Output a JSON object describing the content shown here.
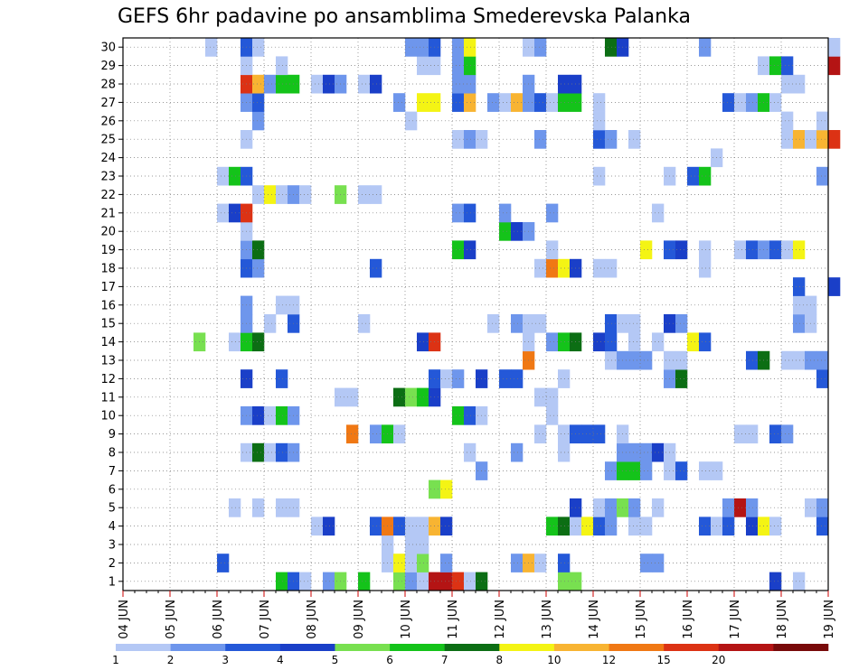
{
  "chart_data": {
    "type": "heatmap",
    "title": "GEFS 6hr padavine po ansamblima Smederevska Palanka",
    "xlabel": "",
    "ylabel": "",
    "x_ticks": [
      "04 JUN",
      "05 JUN",
      "06 JUN",
      "07 JUN",
      "08 JUN",
      "09 JUN",
      "10 JUN",
      "11 JUN",
      "12 JUN",
      "13 JUN",
      "14 JUN",
      "15 JUN",
      "16 JUN",
      "17 JUN",
      "18 JUN",
      "19 JUN"
    ],
    "y_ticks": [
      "1",
      "2",
      "3",
      "4",
      "5",
      "6",
      "7",
      "8",
      "9",
      "10",
      "11",
      "12",
      "13",
      "14",
      "15",
      "16",
      "17",
      "18",
      "19",
      "20",
      "21",
      "22",
      "23",
      "24",
      "25",
      "26",
      "27",
      "28",
      "29",
      "30"
    ],
    "x_steps_per_day": 4,
    "grid": true,
    "legend_placement": "bottom",
    "legend": {
      "labels": [
        "1",
        "2",
        "3",
        "4",
        "5",
        "6",
        "7",
        "8",
        "10",
        "12",
        "15",
        "20"
      ],
      "colors": [
        "#b4c8f5",
        "#6e96ec",
        "#2458d8",
        "#1a3fc8",
        "#78e050",
        "#14c31a",
        "#0c6e14",
        "#f4f414",
        "#f8b432",
        "#f07814",
        "#dc3214",
        "#b41414",
        "#780a0a"
      ]
    },
    "cells": [
      [
        1,
        14,
        6
      ],
      [
        1,
        15,
        3
      ],
      [
        1,
        16,
        1
      ],
      [
        1,
        18,
        2
      ],
      [
        1,
        19,
        5
      ],
      [
        1,
        21,
        6
      ],
      [
        1,
        24,
        5
      ],
      [
        1,
        25,
        2
      ],
      [
        1,
        26,
        1
      ],
      [
        1,
        27,
        12
      ],
      [
        1,
        28,
        12
      ],
      [
        1,
        29,
        11
      ],
      [
        1,
        30,
        1
      ],
      [
        1,
        31,
        7
      ],
      [
        1,
        38,
        5
      ],
      [
        1,
        39,
        5
      ],
      [
        1,
        56,
        4
      ],
      [
        1,
        58,
        1
      ],
      [
        2,
        9,
        3
      ],
      [
        2,
        23,
        1
      ],
      [
        2,
        24,
        8
      ],
      [
        2,
        25,
        1
      ],
      [
        2,
        26,
        5
      ],
      [
        2,
        28,
        2
      ],
      [
        2,
        34,
        2
      ],
      [
        2,
        35,
        9
      ],
      [
        2,
        36,
        1
      ],
      [
        2,
        38,
        3
      ],
      [
        2,
        45,
        2
      ],
      [
        2,
        46,
        2
      ],
      [
        3,
        23,
        1
      ],
      [
        3,
        25,
        1
      ],
      [
        3,
        26,
        1
      ],
      [
        4,
        17,
        1
      ],
      [
        4,
        18,
        4
      ],
      [
        4,
        22,
        3
      ],
      [
        4,
        23,
        10
      ],
      [
        4,
        24,
        3
      ],
      [
        4,
        25,
        1
      ],
      [
        4,
        26,
        1
      ],
      [
        4,
        27,
        9
      ],
      [
        4,
        28,
        4
      ],
      [
        4,
        37,
        6
      ],
      [
        4,
        38,
        7
      ],
      [
        4,
        39,
        1
      ],
      [
        4,
        40,
        8
      ],
      [
        4,
        41,
        3
      ],
      [
        4,
        42,
        2
      ],
      [
        4,
        44,
        1
      ],
      [
        4,
        45,
        1
      ],
      [
        4,
        50,
        3
      ],
      [
        4,
        51,
        1
      ],
      [
        4,
        52,
        3
      ],
      [
        4,
        54,
        4
      ],
      [
        4,
        55,
        8
      ],
      [
        4,
        56,
        1
      ],
      [
        4,
        60,
        3
      ],
      [
        5,
        10,
        1
      ],
      [
        5,
        12,
        1
      ],
      [
        5,
        14,
        1
      ],
      [
        5,
        15,
        1
      ],
      [
        5,
        39,
        4
      ],
      [
        5,
        41,
        1
      ],
      [
        5,
        42,
        2
      ],
      [
        5,
        43,
        5
      ],
      [
        5,
        44,
        2
      ],
      [
        5,
        46,
        1
      ],
      [
        5,
        52,
        2
      ],
      [
        5,
        53,
        12
      ],
      [
        5,
        54,
        2
      ],
      [
        5,
        59,
        1
      ],
      [
        5,
        60,
        2
      ],
      [
        6,
        27,
        5
      ],
      [
        6,
        28,
        8
      ],
      [
        7,
        31,
        2
      ],
      [
        7,
        42,
        2
      ],
      [
        7,
        43,
        6
      ],
      [
        7,
        44,
        6
      ],
      [
        7,
        45,
        2
      ],
      [
        7,
        47,
        1
      ],
      [
        7,
        48,
        3
      ],
      [
        7,
        50,
        1
      ],
      [
        7,
        51,
        1
      ],
      [
        8,
        11,
        1
      ],
      [
        8,
        12,
        7
      ],
      [
        8,
        13,
        1
      ],
      [
        8,
        14,
        3
      ],
      [
        8,
        15,
        2
      ],
      [
        8,
        30,
        1
      ],
      [
        8,
        34,
        2
      ],
      [
        8,
        38,
        1
      ],
      [
        8,
        43,
        2
      ],
      [
        8,
        44,
        2
      ],
      [
        8,
        45,
        2
      ],
      [
        8,
        46,
        4
      ],
      [
        8,
        47,
        1
      ],
      [
        9,
        20,
        10
      ],
      [
        9,
        22,
        2
      ],
      [
        9,
        23,
        6
      ],
      [
        9,
        24,
        1
      ],
      [
        9,
        36,
        1
      ],
      [
        9,
        38,
        1
      ],
      [
        9,
        39,
        3
      ],
      [
        9,
        40,
        3
      ],
      [
        9,
        41,
        3
      ],
      [
        9,
        43,
        1
      ],
      [
        9,
        53,
        1
      ],
      [
        9,
        54,
        1
      ],
      [
        9,
        56,
        3
      ],
      [
        9,
        57,
        2
      ],
      [
        10,
        11,
        2
      ],
      [
        10,
        12,
        4
      ],
      [
        10,
        13,
        1
      ],
      [
        10,
        14,
        6
      ],
      [
        10,
        15,
        2
      ],
      [
        10,
        29,
        6
      ],
      [
        10,
        30,
        3
      ],
      [
        10,
        31,
        1
      ],
      [
        10,
        37,
        1
      ],
      [
        11,
        19,
        1
      ],
      [
        11,
        20,
        1
      ],
      [
        11,
        24,
        7
      ],
      [
        11,
        25,
        5
      ],
      [
        11,
        26,
        6
      ],
      [
        11,
        27,
        4
      ],
      [
        11,
        36,
        1
      ],
      [
        11,
        37,
        1
      ],
      [
        12,
        11,
        4
      ],
      [
        12,
        14,
        3
      ],
      [
        12,
        27,
        3
      ],
      [
        12,
        28,
        1
      ],
      [
        12,
        29,
        2
      ],
      [
        12,
        31,
        4
      ],
      [
        12,
        33,
        3
      ],
      [
        12,
        34,
        3
      ],
      [
        12,
        38,
        1
      ],
      [
        12,
        47,
        2
      ],
      [
        12,
        48,
        7
      ],
      [
        12,
        60,
        3
      ],
      [
        13,
        35,
        10
      ],
      [
        13,
        42,
        1
      ],
      [
        13,
        43,
        2
      ],
      [
        13,
        44,
        2
      ],
      [
        13,
        45,
        2
      ],
      [
        13,
        47,
        1
      ],
      [
        13,
        48,
        1
      ],
      [
        13,
        54,
        3
      ],
      [
        13,
        55,
        7
      ],
      [
        13,
        57,
        1
      ],
      [
        13,
        58,
        1
      ],
      [
        13,
        59,
        2
      ],
      [
        13,
        60,
        2
      ],
      [
        14,
        7,
        5
      ],
      [
        14,
        10,
        1
      ],
      [
        14,
        11,
        6
      ],
      [
        14,
        12,
        7
      ],
      [
        14,
        26,
        4
      ],
      [
        14,
        27,
        11
      ],
      [
        14,
        35,
        1
      ],
      [
        14,
        37,
        2
      ],
      [
        14,
        38,
        6
      ],
      [
        14,
        39,
        7
      ],
      [
        14,
        41,
        4
      ],
      [
        14,
        42,
        3
      ],
      [
        14,
        44,
        1
      ],
      [
        14,
        46,
        1
      ],
      [
        14,
        49,
        8
      ],
      [
        14,
        50,
        3
      ],
      [
        15,
        11,
        2
      ],
      [
        15,
        13,
        1
      ],
      [
        15,
        15,
        3
      ],
      [
        15,
        21,
        1
      ],
      [
        15,
        32,
        1
      ],
      [
        15,
        34,
        2
      ],
      [
        15,
        35,
        1
      ],
      [
        15,
        36,
        1
      ],
      [
        15,
        42,
        3
      ],
      [
        15,
        43,
        1
      ],
      [
        15,
        44,
        1
      ],
      [
        15,
        47,
        4
      ],
      [
        15,
        48,
        2
      ],
      [
        15,
        58,
        2
      ],
      [
        15,
        59,
        1
      ],
      [
        16,
        11,
        2
      ],
      [
        16,
        14,
        1
      ],
      [
        16,
        15,
        1
      ],
      [
        16,
        58,
        1
      ],
      [
        16,
        59,
        1
      ],
      [
        17,
        58,
        3
      ],
      [
        17,
        61,
        4
      ],
      [
        18,
        11,
        3
      ],
      [
        18,
        12,
        2
      ],
      [
        18,
        22,
        3
      ],
      [
        18,
        36,
        1
      ],
      [
        18,
        37,
        10
      ],
      [
        18,
        38,
        8
      ],
      [
        18,
        39,
        4
      ],
      [
        18,
        41,
        1
      ],
      [
        18,
        42,
        1
      ],
      [
        18,
        50,
        1
      ],
      [
        19,
        11,
        2
      ],
      [
        19,
        12,
        7
      ],
      [
        19,
        29,
        6
      ],
      [
        19,
        30,
        4
      ],
      [
        19,
        37,
        1
      ],
      [
        19,
        45,
        8
      ],
      [
        19,
        47,
        3
      ],
      [
        19,
        48,
        4
      ],
      [
        19,
        50,
        1
      ],
      [
        19,
        53,
        1
      ],
      [
        19,
        54,
        3
      ],
      [
        19,
        55,
        2
      ],
      [
        19,
        56,
        3
      ],
      [
        19,
        57,
        1
      ],
      [
        19,
        58,
        8
      ],
      [
        20,
        11,
        1
      ],
      [
        20,
        33,
        6
      ],
      [
        20,
        34,
        4
      ],
      [
        20,
        35,
        2
      ],
      [
        21,
        9,
        1
      ],
      [
        21,
        10,
        4
      ],
      [
        21,
        11,
        11
      ],
      [
        21,
        29,
        2
      ],
      [
        21,
        30,
        3
      ],
      [
        21,
        33,
        2
      ],
      [
        21,
        37,
        2
      ],
      [
        21,
        46,
        1
      ],
      [
        22,
        12,
        1
      ],
      [
        22,
        13,
        8
      ],
      [
        22,
        14,
        1
      ],
      [
        22,
        15,
        2
      ],
      [
        22,
        16,
        1
      ],
      [
        22,
        19,
        5
      ],
      [
        22,
        21,
        1
      ],
      [
        22,
        22,
        1
      ],
      [
        23,
        9,
        1
      ],
      [
        23,
        10,
        6
      ],
      [
        23,
        11,
        3
      ],
      [
        23,
        41,
        1
      ],
      [
        23,
        47,
        1
      ],
      [
        23,
        49,
        3
      ],
      [
        23,
        50,
        6
      ],
      [
        23,
        60,
        2
      ],
      [
        24,
        51,
        1
      ],
      [
        25,
        11,
        1
      ],
      [
        25,
        29,
        1
      ],
      [
        25,
        30,
        2
      ],
      [
        25,
        31,
        1
      ],
      [
        25,
        36,
        2
      ],
      [
        25,
        41,
        3
      ],
      [
        25,
        42,
        2
      ],
      [
        25,
        44,
        1
      ],
      [
        25,
        57,
        1
      ],
      [
        25,
        58,
        9
      ],
      [
        25,
        59,
        1
      ],
      [
        25,
        60,
        9
      ],
      [
        25,
        61,
        11
      ],
      [
        26,
        12,
        2
      ],
      [
        26,
        25,
        1
      ],
      [
        26,
        41,
        1
      ],
      [
        26,
        57,
        1
      ],
      [
        26,
        60,
        1
      ],
      [
        27,
        11,
        2
      ],
      [
        27,
        12,
        3
      ],
      [
        27,
        24,
        2
      ],
      [
        27,
        26,
        8
      ],
      [
        27,
        27,
        8
      ],
      [
        27,
        29,
        3
      ],
      [
        27,
        30,
        9
      ],
      [
        27,
        32,
        2
      ],
      [
        27,
        33,
        1
      ],
      [
        27,
        34,
        9
      ],
      [
        27,
        35,
        2
      ],
      [
        27,
        36,
        3
      ],
      [
        27,
        37,
        1
      ],
      [
        27,
        38,
        6
      ],
      [
        27,
        39,
        6
      ],
      [
        27,
        41,
        1
      ],
      [
        27,
        52,
        3
      ],
      [
        27,
        53,
        1
      ],
      [
        27,
        54,
        2
      ],
      [
        27,
        55,
        6
      ],
      [
        27,
        56,
        1
      ],
      [
        28,
        11,
        11
      ],
      [
        28,
        12,
        9
      ],
      [
        28,
        13,
        2
      ],
      [
        28,
        14,
        6
      ],
      [
        28,
        15,
        6
      ],
      [
        28,
        17,
        1
      ],
      [
        28,
        18,
        4
      ],
      [
        28,
        19,
        2
      ],
      [
        28,
        21,
        1
      ],
      [
        28,
        22,
        4
      ],
      [
        28,
        29,
        2
      ],
      [
        28,
        30,
        2
      ],
      [
        28,
        35,
        2
      ],
      [
        28,
        38,
        4
      ],
      [
        28,
        39,
        4
      ],
      [
        28,
        57,
        1
      ],
      [
        28,
        58,
        1
      ],
      [
        29,
        11,
        1
      ],
      [
        29,
        14,
        1
      ],
      [
        29,
        26,
        1
      ],
      [
        29,
        27,
        1
      ],
      [
        29,
        29,
        2
      ],
      [
        29,
        30,
        6
      ],
      [
        29,
        55,
        1
      ],
      [
        29,
        56,
        6
      ],
      [
        29,
        57,
        3
      ],
      [
        29,
        61,
        12
      ],
      [
        30,
        8,
        1
      ],
      [
        30,
        11,
        3
      ],
      [
        30,
        12,
        1
      ],
      [
        30,
        25,
        2
      ],
      [
        30,
        26,
        2
      ],
      [
        30,
        27,
        3
      ],
      [
        30,
        29,
        2
      ],
      [
        30,
        30,
        8
      ],
      [
        30,
        35,
        1
      ],
      [
        30,
        36,
        2
      ],
      [
        30,
        42,
        7
      ],
      [
        30,
        43,
        4
      ],
      [
        30,
        50,
        2
      ],
      [
        30,
        61,
        1
      ]
    ]
  }
}
